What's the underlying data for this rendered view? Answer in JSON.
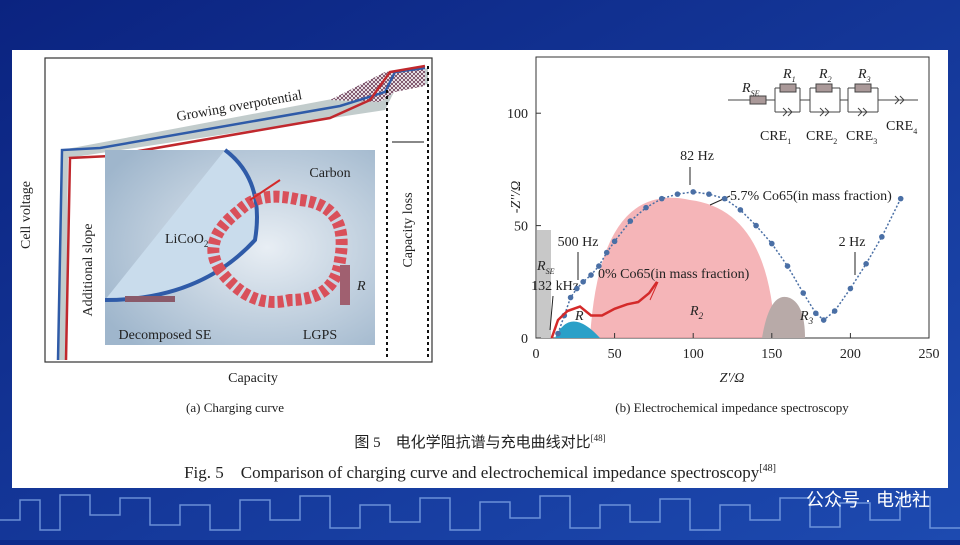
{
  "panel_a": {
    "y_label": "Cell voltage",
    "x_label": "Capacity",
    "growing": "Growing overpotential",
    "capacity_loss": "Capacity loss",
    "additional_slope": "Additional slope",
    "carbon": "Carbon",
    "licoo2": {
      "base": "LiCoO",
      "sub": "2"
    },
    "resistor": "R",
    "decomposed": "Decomposed SE",
    "lgps": "LGPS",
    "caption": "(a) Charging curve"
  },
  "circuit": {
    "rse": {
      "base": "R",
      "sub": "SE"
    },
    "r1": {
      "base": "R",
      "sub": "1"
    },
    "r2": {
      "base": "R",
      "sub": "2"
    },
    "r3": {
      "base": "R",
      "sub": "3"
    },
    "cre1": {
      "base": "CRE",
      "sub": "1"
    },
    "cre2": {
      "base": "CRE",
      "sub": "2"
    },
    "cre3": {
      "base": "CRE",
      "sub": "3"
    },
    "cre4": {
      "base": "CRE",
      "sub": "4"
    }
  },
  "chart_data": {
    "type": "line",
    "x_label": "Z'/Ω",
    "y_label": "-Z''/Ω",
    "xlim": [
      0,
      250
    ],
    "xticks": [
      0,
      50,
      100,
      150,
      200,
      250
    ],
    "ylim": [
      0,
      125
    ],
    "yticks": [
      0,
      50,
      100
    ],
    "series": [
      {
        "name": "5.7% Co65(in mass fraction)",
        "color": "#4a6fa5",
        "x": [
          14,
          18,
          22,
          26,
          30,
          35,
          40,
          45,
          50,
          60,
          70,
          80,
          90,
          100,
          110,
          120,
          130,
          140,
          150,
          160,
          170,
          178,
          183,
          190,
          200,
          210,
          220,
          232
        ],
        "values": [
          2,
          10,
          18,
          22,
          25,
          28,
          32,
          38,
          43,
          52,
          58,
          62,
          64,
          65,
          64,
          62,
          57,
          50,
          42,
          32,
          20,
          11,
          8,
          12,
          22,
          33,
          45,
          62
        ]
      },
      {
        "name": "0% Co65(in mass fraction)",
        "color": "#d42a2a",
        "x": [
          10,
          14,
          20,
          28,
          35,
          42,
          50,
          58,
          65,
          72,
          77
        ],
        "values": [
          0,
          8,
          12,
          14,
          10,
          10,
          13,
          15,
          16,
          20,
          25
        ]
      }
    ],
    "annotations": {
      "hz82": "82 Hz",
      "hz500": "500 Hz",
      "khz132": "132 kHz",
      "hz2": "2 Hz"
    },
    "regions": {
      "rse": {
        "base": "R",
        "sub": "SE"
      },
      "r": "R",
      "r2": {
        "base": "R",
        "sub": "2"
      },
      "r3": {
        "base": "R",
        "sub": "3"
      }
    },
    "caption": "(b) Electrochemical impedance spectroscopy"
  },
  "figure": {
    "title_cn": "图 5　电化学阻抗谱与充电曲线对比",
    "title_cn_ref": "[48]",
    "title_en": "Fig. 5　Comparison of charging curve and electrochemical impedance spectroscopy",
    "title_en_ref": "[48]"
  },
  "watermark": "公众号 · 电池社"
}
